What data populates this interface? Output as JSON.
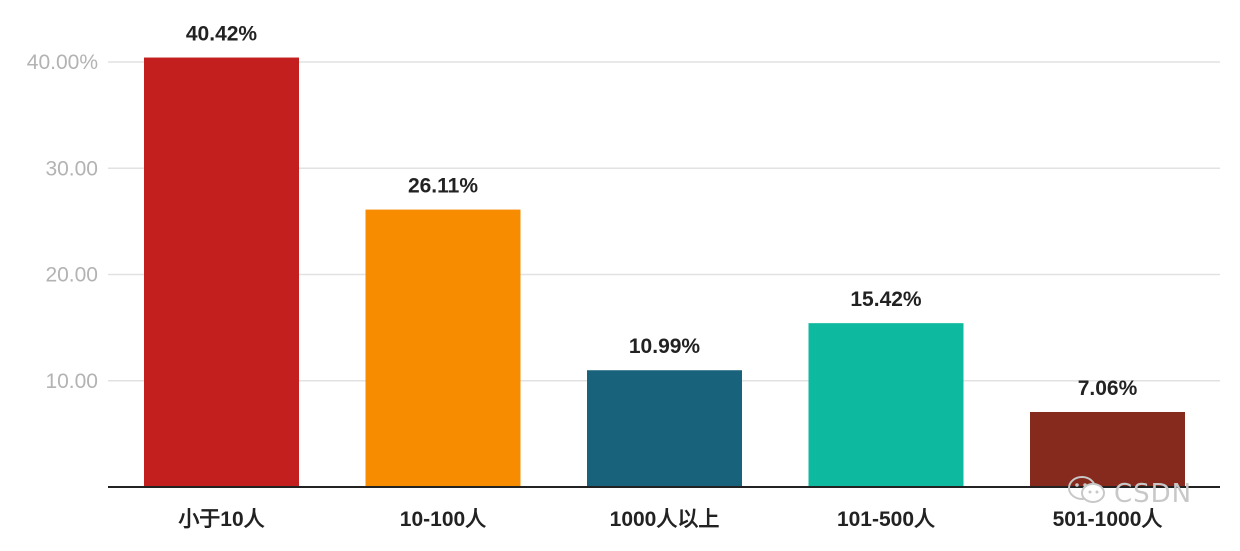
{
  "chart_data": {
    "type": "bar",
    "categories": [
      "小于10人",
      "10-100人",
      "1000人以上",
      "101-500人",
      "501-1000人"
    ],
    "values": [
      40.42,
      26.11,
      10.99,
      15.42,
      7.06
    ],
    "value_labels": [
      "40.42%",
      "26.11%",
      "10.99%",
      "15.42%",
      "7.06%"
    ],
    "colors": [
      "#c41f1f",
      "#f78c00",
      "#18627c",
      "#0dbaa0",
      "#852a1c"
    ],
    "y_ticks": [
      {
        "value": 10,
        "label": "10.00"
      },
      {
        "value": 20,
        "label": "20.00"
      },
      {
        "value": 30,
        "label": "30.00"
      },
      {
        "value": 40,
        "label": "40.00%"
      }
    ],
    "ylim": [
      0,
      42.5
    ],
    "grid": true,
    "title": "",
    "xlabel": "",
    "ylabel": ""
  },
  "watermark": {
    "icon": "wechat-icon",
    "text": "CSDN"
  }
}
